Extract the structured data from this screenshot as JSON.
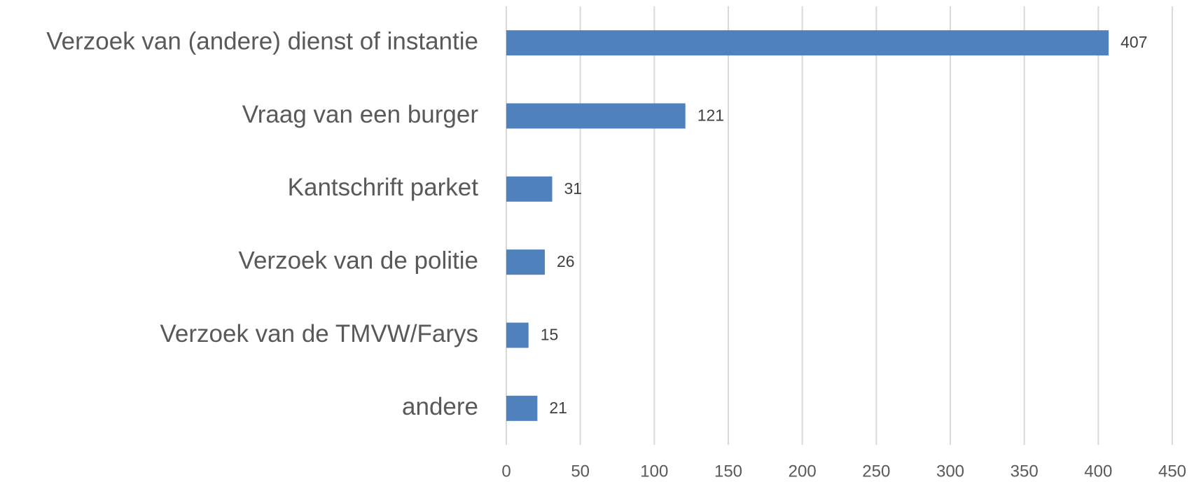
{
  "chart_data": {
    "type": "bar",
    "orientation": "horizontal",
    "categories": [
      "Verzoek van (andere) dienst of instantie",
      "Vraag van een burger",
      "Kantschrift parket",
      "Verzoek van de politie",
      "Verzoek van de TMVW/Farys",
      "andere"
    ],
    "values": [
      407,
      121,
      31,
      26,
      15,
      21
    ],
    "color": "#4f81bd",
    "xlim": [
      0,
      450
    ],
    "xticks": [
      0,
      50,
      100,
      150,
      200,
      250,
      300,
      350,
      400,
      450
    ],
    "grid": true
  }
}
